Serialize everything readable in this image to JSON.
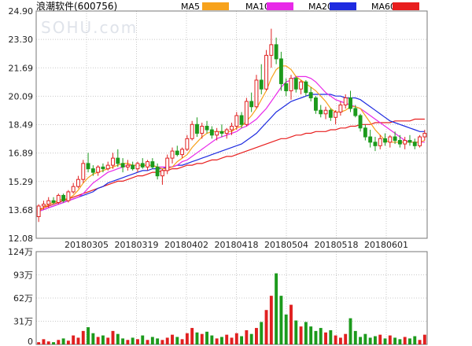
{
  "chart_data": [
    {
      "type": "candlestick",
      "title": "浪潮软件(600756)",
      "watermark": "SOHU.com",
      "yticks": [
        "24.90",
        "23.30",
        "21.69",
        "20.09",
        "18.49",
        "16.89",
        "15.29",
        "13.68",
        "12.08"
      ],
      "ylim": [
        12.08,
        24.9
      ],
      "xticks": [
        "20180305",
        "20180319",
        "20180402",
        "20180418",
        "20180504",
        "20180518",
        "20180601"
      ],
      "legend": [
        {
          "name": "MA5",
          "color": "#f7a21b"
        },
        {
          "name": "MA10",
          "color": "#e829e8"
        },
        {
          "name": "MA20",
          "color": "#1e2be0"
        },
        {
          "name": "MA60",
          "color": "#e81e1e"
        }
      ],
      "up_color": "#e02020",
      "down_color": "#1c9a1c",
      "ohlc": [
        [
          13.3,
          14.0,
          13.0,
          13.9
        ],
        [
          13.9,
          14.2,
          13.7,
          14.0
        ],
        [
          14.0,
          14.4,
          13.8,
          14.2
        ],
        [
          14.2,
          14.4,
          14.0,
          14.1
        ],
        [
          14.1,
          14.6,
          14.0,
          14.5
        ],
        [
          14.5,
          14.6,
          14.1,
          14.2
        ],
        [
          14.2,
          14.8,
          14.1,
          14.7
        ],
        [
          14.7,
          15.2,
          14.6,
          15.0
        ],
        [
          15.0,
          15.6,
          14.9,
          15.4
        ],
        [
          15.4,
          16.5,
          15.2,
          16.3
        ],
        [
          16.3,
          16.9,
          15.8,
          16.0
        ],
        [
          16.0,
          16.2,
          15.6,
          15.8
        ],
        [
          15.8,
          16.2,
          15.6,
          16.1
        ],
        [
          16.1,
          16.3,
          15.8,
          16.0
        ],
        [
          16.0,
          16.4,
          15.9,
          16.2
        ],
        [
          16.2,
          16.9,
          16.0,
          16.6
        ],
        [
          16.6,
          17.1,
          16.1,
          16.3
        ],
        [
          16.3,
          16.6,
          15.8,
          16.1
        ],
        [
          16.1,
          16.5,
          15.9,
          16.2
        ],
        [
          16.2,
          16.4,
          15.9,
          16.0
        ],
        [
          16.0,
          16.4,
          15.8,
          16.3
        ],
        [
          16.3,
          16.6,
          16.0,
          16.1
        ],
        [
          16.1,
          16.5,
          15.9,
          16.4
        ],
        [
          16.4,
          16.6,
          16.0,
          16.1
        ],
        [
          16.1,
          16.3,
          15.4,
          15.6
        ],
        [
          15.6,
          16.0,
          15.1,
          15.9
        ],
        [
          15.9,
          16.8,
          15.7,
          16.6
        ],
        [
          16.6,
          17.2,
          16.3,
          17.0
        ],
        [
          17.0,
          17.3,
          16.7,
          16.8
        ],
        [
          16.8,
          17.2,
          16.6,
          17.1
        ],
        [
          17.1,
          17.9,
          17.0,
          17.7
        ],
        [
          17.7,
          18.7,
          17.6,
          18.5
        ],
        [
          18.5,
          18.9,
          17.8,
          18.0
        ],
        [
          18.0,
          18.6,
          17.7,
          18.4
        ],
        [
          18.4,
          18.7,
          18.0,
          18.2
        ],
        [
          18.2,
          18.4,
          17.7,
          17.9
        ],
        [
          17.9,
          18.3,
          17.6,
          18.1
        ],
        [
          18.1,
          18.5,
          17.8,
          18.0
        ],
        [
          18.0,
          18.3,
          17.7,
          18.2
        ],
        [
          18.2,
          18.6,
          17.9,
          18.4
        ],
        [
          18.4,
          19.2,
          18.2,
          19.0
        ],
        [
          19.0,
          19.2,
          18.3,
          18.5
        ],
        [
          18.5,
          20.0,
          18.4,
          19.8
        ],
        [
          19.8,
          20.3,
          19.2,
          19.5
        ],
        [
          19.5,
          21.3,
          19.4,
          21.0
        ],
        [
          21.0,
          21.9,
          20.2,
          20.5
        ],
        [
          20.5,
          22.7,
          20.4,
          22.4
        ],
        [
          22.4,
          23.9,
          21.7,
          23.0
        ],
        [
          23.0,
          23.4,
          21.9,
          22.2
        ],
        [
          22.2,
          22.6,
          20.4,
          20.8
        ],
        [
          20.8,
          21.1,
          20.1,
          20.4
        ],
        [
          20.4,
          21.3,
          19.9,
          21.1
        ],
        [
          21.1,
          21.2,
          20.3,
          20.5
        ],
        [
          20.5,
          21.0,
          20.2,
          20.9
        ],
        [
          20.9,
          21.0,
          20.1,
          20.3
        ],
        [
          20.3,
          20.6,
          19.8,
          20.0
        ],
        [
          20.0,
          20.1,
          19.1,
          19.3
        ],
        [
          19.3,
          19.6,
          18.9,
          19.1
        ],
        [
          19.1,
          19.5,
          18.8,
          19.3
        ],
        [
          19.3,
          19.4,
          18.7,
          18.9
        ],
        [
          18.9,
          19.3,
          18.5,
          19.2
        ],
        [
          19.2,
          19.8,
          19.0,
          19.6
        ],
        [
          19.6,
          20.2,
          19.4,
          20.0
        ],
        [
          20.0,
          20.4,
          19.2,
          19.4
        ],
        [
          19.4,
          19.6,
          18.9,
          19.0
        ],
        [
          19.0,
          19.1,
          18.1,
          18.3
        ],
        [
          18.3,
          18.5,
          17.6,
          17.8
        ],
        [
          17.8,
          18.2,
          17.2,
          17.5
        ],
        [
          17.5,
          17.8,
          17.0,
          17.3
        ],
        [
          17.3,
          17.9,
          17.1,
          17.7
        ],
        [
          17.7,
          18.0,
          17.3,
          17.5
        ],
        [
          17.5,
          17.9,
          17.2,
          17.8
        ],
        [
          17.8,
          18.1,
          17.4,
          17.6
        ],
        [
          17.6,
          17.9,
          17.2,
          17.4
        ],
        [
          17.4,
          17.8,
          17.1,
          17.6
        ],
        [
          17.6,
          17.9,
          17.3,
          17.5
        ],
        [
          17.5,
          17.7,
          17.1,
          17.3
        ],
        [
          17.3,
          17.9,
          17.2,
          17.8
        ],
        [
          17.8,
          18.2,
          17.6,
          18.0
        ]
      ],
      "ma5": [
        13.6,
        13.8,
        14.0,
        14.1,
        14.2,
        14.3,
        14.3,
        14.5,
        14.8,
        15.2,
        15.5,
        15.7,
        15.8,
        15.9,
        16.0,
        16.1,
        16.2,
        16.3,
        16.3,
        16.2,
        16.2,
        16.2,
        16.2,
        16.2,
        16.1,
        16.0,
        16.0,
        16.1,
        16.4,
        16.6,
        16.8,
        17.2,
        17.5,
        17.8,
        18.0,
        18.1,
        18.1,
        18.1,
        18.1,
        18.1,
        18.3,
        18.4,
        18.7,
        19.0,
        19.4,
        19.9,
        20.4,
        21.1,
        21.6,
        21.8,
        21.8,
        21.6,
        21.2,
        21.0,
        20.8,
        20.6,
        20.4,
        20.1,
        19.8,
        19.4,
        19.2,
        19.2,
        19.3,
        19.5,
        19.5,
        19.4,
        19.0,
        18.6,
        18.2,
        17.9,
        17.6,
        17.5,
        17.5,
        17.5,
        17.5,
        17.5,
        17.5,
        17.5,
        17.6
      ],
      "ma10": [
        13.6,
        13.7,
        13.8,
        13.9,
        14.0,
        14.1,
        14.2,
        14.3,
        14.4,
        14.6,
        14.9,
        15.2,
        15.4,
        15.6,
        15.8,
        15.9,
        16.0,
        16.1,
        16.2,
        16.2,
        16.2,
        16.2,
        16.2,
        16.2,
        16.1,
        16.1,
        16.1,
        16.1,
        16.2,
        16.4,
        16.5,
        16.7,
        16.9,
        17.1,
        17.3,
        17.5,
        17.7,
        17.8,
        17.9,
        18.0,
        18.1,
        18.3,
        18.4,
        18.6,
        18.8,
        19.1,
        19.4,
        19.8,
        20.2,
        20.6,
        20.9,
        21.0,
        21.2,
        21.2,
        21.2,
        21.1,
        20.9,
        20.6,
        20.3,
        20.1,
        19.9,
        19.8,
        19.7,
        19.6,
        19.5,
        19.4,
        19.2,
        19.0,
        18.8,
        18.6,
        18.4,
        18.2,
        18.0,
        17.8,
        17.6,
        17.5,
        17.5,
        17.5,
        17.5
      ],
      "ma20": [
        13.6,
        13.7,
        13.8,
        13.9,
        14.0,
        14.1,
        14.2,
        14.3,
        14.4,
        14.5,
        14.6,
        14.7,
        14.9,
        15.0,
        15.2,
        15.3,
        15.4,
        15.5,
        15.6,
        15.7,
        15.8,
        15.9,
        15.9,
        16.0,
        16.0,
        16.0,
        16.1,
        16.1,
        16.2,
        16.2,
        16.3,
        16.4,
        16.5,
        16.6,
        16.7,
        16.8,
        16.9,
        17.0,
        17.1,
        17.2,
        17.3,
        17.4,
        17.6,
        17.8,
        18.0,
        18.3,
        18.6,
        18.9,
        19.2,
        19.4,
        19.6,
        19.8,
        19.9,
        20.0,
        20.1,
        20.2,
        20.2,
        20.2,
        20.2,
        20.2,
        20.1,
        20.1,
        20.0,
        20.0,
        20.0,
        19.9,
        19.7,
        19.5,
        19.3,
        19.1,
        18.9,
        18.7,
        18.6,
        18.5,
        18.4,
        18.3,
        18.2,
        18.1,
        18.1
      ],
      "ma60": [
        13.7,
        13.8,
        13.9,
        14.0,
        14.1,
        14.2,
        14.3,
        14.4,
        14.5,
        14.6,
        14.7,
        14.8,
        14.9,
        15.0,
        15.1,
        15.2,
        15.3,
        15.3,
        15.4,
        15.5,
        15.6,
        15.6,
        15.7,
        15.8,
        15.8,
        15.9,
        15.9,
        16.0,
        16.0,
        16.1,
        16.2,
        16.2,
        16.3,
        16.3,
        16.4,
        16.5,
        16.5,
        16.6,
        16.7,
        16.7,
        16.8,
        16.9,
        17.0,
        17.1,
        17.2,
        17.3,
        17.4,
        17.5,
        17.6,
        17.7,
        17.7,
        17.8,
        17.9,
        17.9,
        18.0,
        18.0,
        18.1,
        18.1,
        18.1,
        18.2,
        18.2,
        18.3,
        18.3,
        18.4,
        18.4,
        18.5,
        18.5,
        18.5,
        18.6,
        18.6,
        18.6,
        18.6,
        18.7,
        18.7,
        18.7,
        18.7,
        18.8,
        18.8,
        18.8
      ]
    },
    {
      "type": "bar",
      "yticks": [
        "124万",
        "93万",
        "62万",
        "31万",
        "0"
      ],
      "ylim": [
        0,
        124
      ],
      "volume": [
        3,
        7,
        4,
        3,
        6,
        8,
        5,
        12,
        9,
        18,
        23,
        15,
        10,
        12,
        9,
        18,
        14,
        8,
        6,
        9,
        7,
        12,
        6,
        10,
        8,
        6,
        9,
        13,
        10,
        7,
        15,
        22,
        16,
        14,
        17,
        12,
        8,
        10,
        13,
        9,
        15,
        11,
        19,
        14,
        22,
        30,
        46,
        65,
        95,
        65,
        40,
        53,
        32,
        24,
        30,
        24,
        18,
        22,
        16,
        19,
        12,
        9,
        14,
        35,
        18,
        10,
        14,
        9,
        11,
        13,
        8,
        12,
        9,
        7,
        10,
        8,
        11,
        6,
        13
      ]
    }
  ]
}
